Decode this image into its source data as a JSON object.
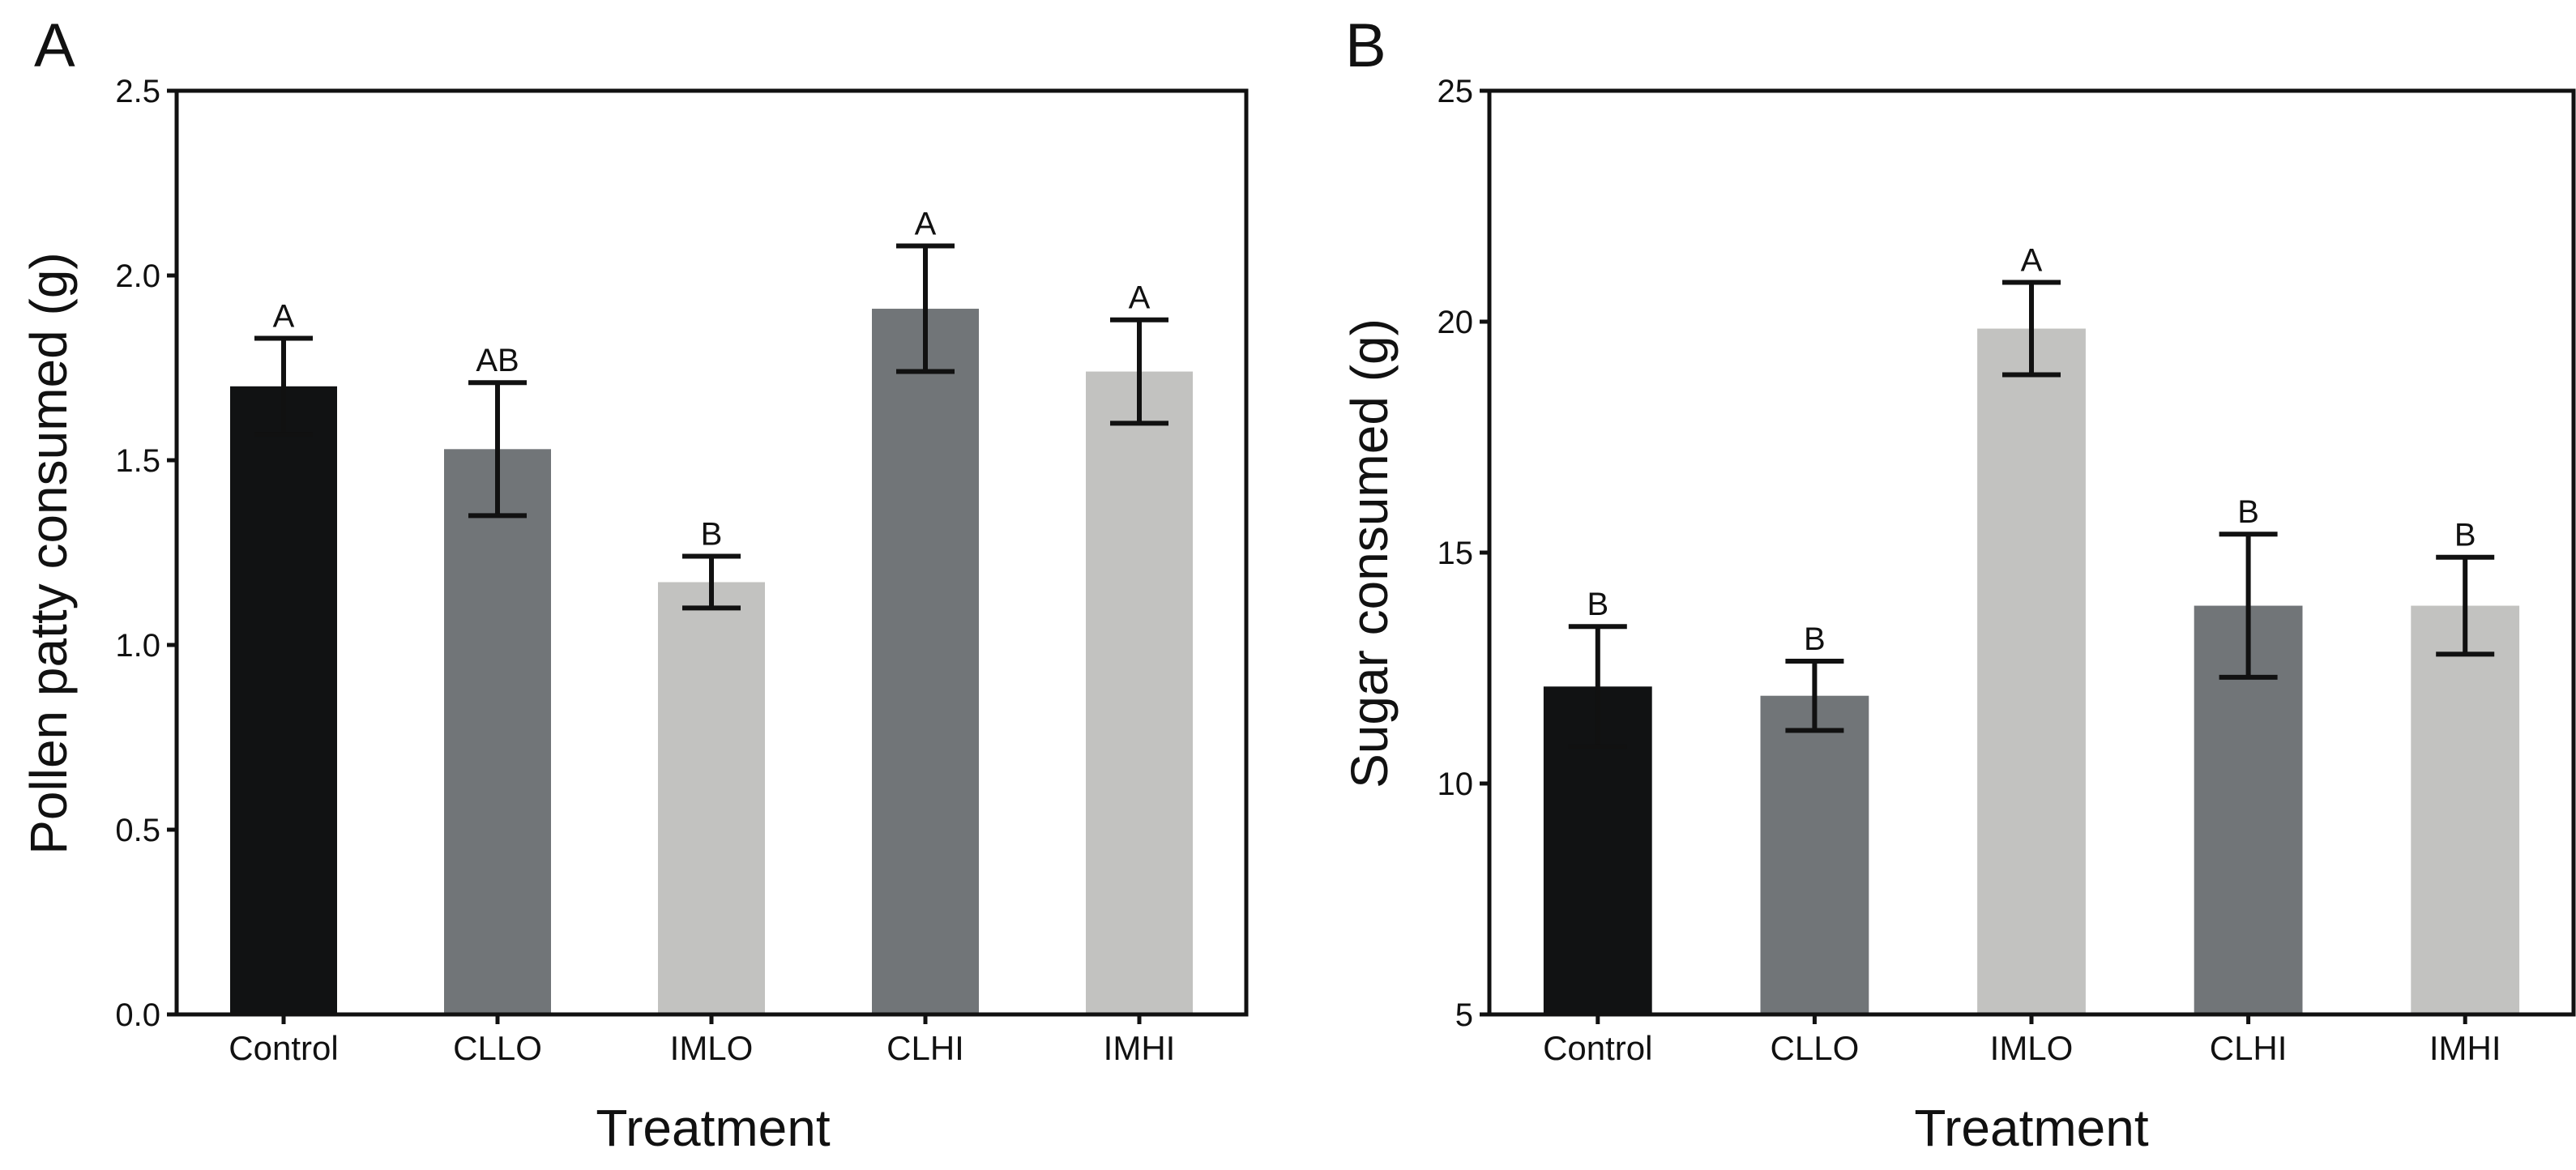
{
  "chart_data": [
    {
      "type": "bar",
      "panel": "A",
      "title": "",
      "xlabel": "Treatment",
      "ylabel": "Pollen patty consumed (g)",
      "ylim": [
        0,
        2.5
      ],
      "yticks": [
        "0.0",
        "0.5",
        "1.0",
        "1.5",
        "2.0",
        "2.5"
      ],
      "ytick_values": [
        0,
        0.5,
        1.0,
        1.5,
        2.0,
        2.5
      ],
      "categories": [
        "Control",
        "CLLO",
        "IMLO",
        "CLHI",
        "IMHI"
      ],
      "values": [
        1.7,
        1.53,
        1.17,
        1.91,
        1.74
      ],
      "errors": [
        0.13,
        0.18,
        0.07,
        0.17,
        0.14
      ],
      "significance": [
        "A",
        "AB",
        "B",
        "A",
        "A"
      ],
      "colors": [
        "#111213",
        "#717578",
        "#c2c2c0",
        "#717578",
        "#c2c2c0"
      ],
      "grid": false,
      "legend": "none"
    },
    {
      "type": "bar",
      "panel": "B",
      "title": "",
      "xlabel": "Treatment",
      "ylabel": "Sugar consumed (g)",
      "ylim": [
        5,
        25
      ],
      "yticks": [
        "5",
        "10",
        "15",
        "20",
        "25"
      ],
      "ytick_values": [
        5,
        10,
        15,
        20,
        25
      ],
      "categories": [
        "Control",
        "CLLO",
        "IMLO",
        "CLHI",
        "IMHI"
      ],
      "values": [
        12.1,
        11.9,
        19.85,
        13.85,
        13.85
      ],
      "errors": [
        1.3,
        0.75,
        1.0,
        1.55,
        1.05
      ],
      "significance": [
        "B",
        "B",
        "A",
        "B",
        "B"
      ],
      "colors": [
        "#111213",
        "#717578",
        "#c2c2c0",
        "#717578",
        "#c2c2c0"
      ],
      "grid": false,
      "legend": "none"
    }
  ]
}
